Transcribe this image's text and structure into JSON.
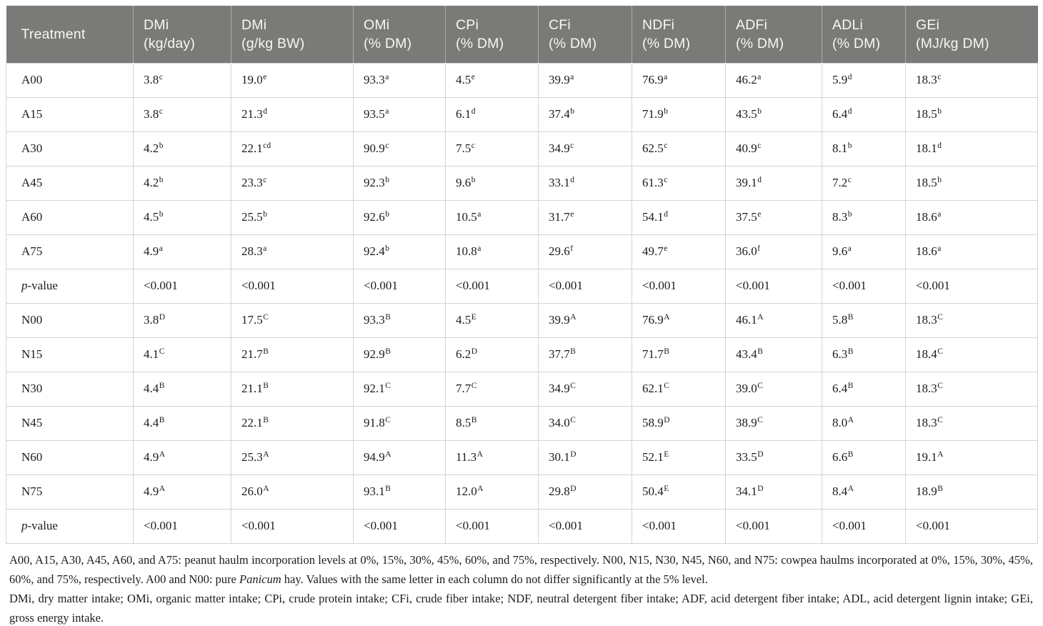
{
  "colors": {
    "header_bg": "#7a7a78",
    "header_text": "#f7f7f5",
    "border": "#d4d4d4",
    "body_text": "#1c1c1c"
  },
  "table": {
    "columns": [
      {
        "l1": "Treatment",
        "l2": ""
      },
      {
        "l1": "DMi",
        "l2": "(kg/day)"
      },
      {
        "l1": "DMi",
        "l2": "(g/kg BW)"
      },
      {
        "l1": "OMi",
        "l2": "(% DM)"
      },
      {
        "l1": "CPi",
        "l2": "(% DM)"
      },
      {
        "l1": "CFi",
        "l2": "(% DM)"
      },
      {
        "l1": "NDFi",
        "l2": "(% DM)"
      },
      {
        "l1": "ADFi",
        "l2": "(% DM)"
      },
      {
        "l1": "ADLi",
        "l2": "(% DM)"
      },
      {
        "l1": "GEi",
        "l2": "(MJ/kg DM)"
      }
    ],
    "rows": [
      {
        "label": {
          "text": "A00"
        },
        "cells": [
          {
            "v": "3.8",
            "s": "c"
          },
          {
            "v": "19.0",
            "s": "e"
          },
          {
            "v": "93.3",
            "s": "a"
          },
          {
            "v": "4.5",
            "s": "e"
          },
          {
            "v": "39.9",
            "s": "a"
          },
          {
            "v": "76.9",
            "s": "a"
          },
          {
            "v": "46.2",
            "s": "a"
          },
          {
            "v": "5.9",
            "s": "d"
          },
          {
            "v": "18.3",
            "s": "c"
          }
        ]
      },
      {
        "label": {
          "text": "A15"
        },
        "cells": [
          {
            "v": "3.8",
            "s": "c"
          },
          {
            "v": "21.3",
            "s": "d"
          },
          {
            "v": "93.5",
            "s": "a"
          },
          {
            "v": "6.1",
            "s": "d"
          },
          {
            "v": "37.4",
            "s": "b"
          },
          {
            "v": "71.9",
            "s": "b"
          },
          {
            "v": "43.5",
            "s": "b"
          },
          {
            "v": "6.4",
            "s": "d"
          },
          {
            "v": "18.5",
            "s": "b"
          }
        ]
      },
      {
        "label": {
          "text": "A30"
        },
        "cells": [
          {
            "v": "4.2",
            "s": "b"
          },
          {
            "v": "22.1",
            "s": "cd"
          },
          {
            "v": "90.9",
            "s": "c"
          },
          {
            "v": "7.5",
            "s": "c"
          },
          {
            "v": "34.9",
            "s": "c"
          },
          {
            "v": "62.5",
            "s": "c"
          },
          {
            "v": "40.9",
            "s": "c"
          },
          {
            "v": "8.1",
            "s": "b"
          },
          {
            "v": "18.1",
            "s": "d"
          }
        ]
      },
      {
        "label": {
          "text": "A45"
        },
        "cells": [
          {
            "v": "4.2",
            "s": "b"
          },
          {
            "v": "23.3",
            "s": "c"
          },
          {
            "v": "92.3",
            "s": "b"
          },
          {
            "v": "9.6",
            "s": "b"
          },
          {
            "v": "33.1",
            "s": "d"
          },
          {
            "v": "61.3",
            "s": "c"
          },
          {
            "v": "39.1",
            "s": "d"
          },
          {
            "v": "7.2",
            "s": "c"
          },
          {
            "v": "18.5",
            "s": "b"
          }
        ]
      },
      {
        "label": {
          "text": "A60"
        },
        "cells": [
          {
            "v": "4.5",
            "s": "b"
          },
          {
            "v": "25.5",
            "s": "b"
          },
          {
            "v": "92.6",
            "s": "b"
          },
          {
            "v": "10.5",
            "s": "a"
          },
          {
            "v": "31.7",
            "s": "e"
          },
          {
            "v": "54.1",
            "s": "d"
          },
          {
            "v": "37.5",
            "s": "e"
          },
          {
            "v": "8.3",
            "s": "b"
          },
          {
            "v": "18.6",
            "s": "a"
          }
        ]
      },
      {
        "label": {
          "text": "A75"
        },
        "cells": [
          {
            "v": "4.9",
            "s": "a"
          },
          {
            "v": "28.3",
            "s": "a"
          },
          {
            "v": "92.4",
            "s": "b"
          },
          {
            "v": "10.8",
            "s": "a"
          },
          {
            "v": "29.6",
            "s": "f"
          },
          {
            "v": "49.7",
            "s": "e"
          },
          {
            "v": "36.0",
            "s": "f"
          },
          {
            "v": "9.6",
            "s": "a"
          },
          {
            "v": "18.6",
            "s": "a"
          }
        ]
      },
      {
        "label": {
          "em": "p",
          "text": "-value"
        },
        "cells": [
          {
            "v": "<0.001",
            "s": ""
          },
          {
            "v": "<0.001",
            "s": ""
          },
          {
            "v": "<0.001",
            "s": ""
          },
          {
            "v": "<0.001",
            "s": ""
          },
          {
            "v": "<0.001",
            "s": ""
          },
          {
            "v": "<0.001",
            "s": ""
          },
          {
            "v": "<0.001",
            "s": ""
          },
          {
            "v": "<0.001",
            "s": ""
          },
          {
            "v": "<0.001",
            "s": ""
          }
        ]
      },
      {
        "label": {
          "text": "N00"
        },
        "cells": [
          {
            "v": "3.8",
            "s": "D"
          },
          {
            "v": "17.5",
            "s": "C"
          },
          {
            "v": "93.3",
            "s": "B"
          },
          {
            "v": "4.5",
            "s": "E"
          },
          {
            "v": "39.9",
            "s": "A"
          },
          {
            "v": "76.9",
            "s": "A"
          },
          {
            "v": "46.1",
            "s": "A"
          },
          {
            "v": "5.8",
            "s": "B"
          },
          {
            "v": "18.3",
            "s": "C"
          }
        ]
      },
      {
        "label": {
          "text": "N15"
        },
        "cells": [
          {
            "v": "4.1",
            "s": "C"
          },
          {
            "v": "21.7",
            "s": "B"
          },
          {
            "v": "92.9",
            "s": "B"
          },
          {
            "v": "6.2",
            "s": "D"
          },
          {
            "v": "37.7",
            "s": "B"
          },
          {
            "v": "71.7",
            "s": "B"
          },
          {
            "v": "43.4",
            "s": "B"
          },
          {
            "v": "6.3",
            "s": "B"
          },
          {
            "v": "18.4",
            "s": "C"
          }
        ]
      },
      {
        "label": {
          "text": "N30"
        },
        "cells": [
          {
            "v": "4.4",
            "s": "B"
          },
          {
            "v": "21.1",
            "s": "B"
          },
          {
            "v": "92.1",
            "s": "C"
          },
          {
            "v": "7.7",
            "s": "C"
          },
          {
            "v": "34.9",
            "s": "C"
          },
          {
            "v": "62.1",
            "s": "C"
          },
          {
            "v": "39.0",
            "s": "C"
          },
          {
            "v": "6.4",
            "s": "B"
          },
          {
            "v": "18.3",
            "s": "C"
          }
        ]
      },
      {
        "label": {
          "text": "N45"
        },
        "cells": [
          {
            "v": "4.4",
            "s": "B"
          },
          {
            "v": "22.1",
            "s": "B"
          },
          {
            "v": "91.8",
            "s": "C"
          },
          {
            "v": "8.5",
            "s": "B"
          },
          {
            "v": "34.0",
            "s": "C"
          },
          {
            "v": "58.9",
            "s": "D"
          },
          {
            "v": "38.9",
            "s": "C"
          },
          {
            "v": "8.0",
            "s": "A"
          },
          {
            "v": "18.3",
            "s": "C"
          }
        ]
      },
      {
        "label": {
          "text": "N60"
        },
        "cells": [
          {
            "v": "4.9",
            "s": "A"
          },
          {
            "v": "25.3",
            "s": "A"
          },
          {
            "v": "94.9",
            "s": "A"
          },
          {
            "v": "11.3",
            "s": "A"
          },
          {
            "v": "30.1",
            "s": "D"
          },
          {
            "v": "52.1",
            "s": "E"
          },
          {
            "v": "33.5",
            "s": "D"
          },
          {
            "v": "6.6",
            "s": "B"
          },
          {
            "v": "19.1",
            "s": "A"
          }
        ]
      },
      {
        "label": {
          "text": "N75"
        },
        "cells": [
          {
            "v": "4.9",
            "s": "A"
          },
          {
            "v": "26.0",
            "s": "A"
          },
          {
            "v": "93.1",
            "s": "B"
          },
          {
            "v": "12.0",
            "s": "A"
          },
          {
            "v": "29.8",
            "s": "D"
          },
          {
            "v": "50.4",
            "s": "E"
          },
          {
            "v": "34.1",
            "s": "D"
          },
          {
            "v": "8.4",
            "s": "A"
          },
          {
            "v": "18.9",
            "s": "B"
          }
        ]
      },
      {
        "label": {
          "em": "p",
          "text": "-value"
        },
        "cells": [
          {
            "v": "<0.001",
            "s": ""
          },
          {
            "v": "<0.001",
            "s": ""
          },
          {
            "v": "<0.001",
            "s": ""
          },
          {
            "v": "<0.001",
            "s": ""
          },
          {
            "v": "<0.001",
            "s": ""
          },
          {
            "v": "<0.001",
            "s": ""
          },
          {
            "v": "<0.001",
            "s": ""
          },
          {
            "v": "<0.001",
            "s": ""
          },
          {
            "v": "<0.001",
            "s": ""
          }
        ]
      }
    ]
  },
  "footnotes": {
    "note1_pre": "A00, A15, A30, A45, A60, and A75: peanut haulm incorporation levels at 0%, 15%, 30%, 45%, 60%, and 75%, respectively. N00, N15, N30, N45, N60, and N75: cowpea haulms incorporated at 0%, 15%, 30%, 45%, 60%, and 75%, respectively. A00 and N00: pure ",
    "note1_italic": "Panicum",
    "note1_post": " hay. Values with the same letter in each column do not differ significantly at the 5% level.",
    "note2": "DMi, dry matter intake; OMi, organic matter intake; CPi, crude protein intake; CFi, crude fiber intake; NDF, neutral detergent fiber intake; ADF, acid detergent fiber intake; ADL, acid detergent lignin intake; GEi, gross energy intake."
  }
}
